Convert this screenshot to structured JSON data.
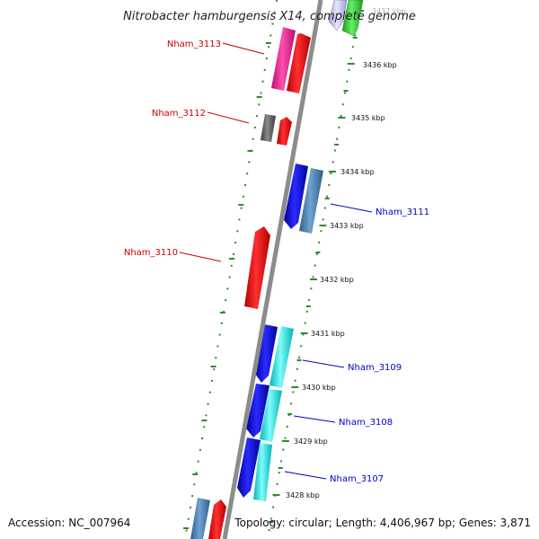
{
  "title": "Nitrobacter hamburgensis X14, complete genome",
  "footer": {
    "accession": "Accession: NC_007964",
    "summary": "Topology: circular; Length: 4,406,967 bp; Genes: 3,871"
  },
  "ticks": [
    {
      "label": "3437 kbp",
      "faded": true
    },
    {
      "label": "3436 kbp"
    },
    {
      "label": "3435 kbp"
    },
    {
      "label": "3434 kbp"
    },
    {
      "label": "3433 kbp"
    },
    {
      "label": "3432 kbp"
    },
    {
      "label": "3431 kbp"
    },
    {
      "label": "3430 kbp"
    },
    {
      "label": "3429 kbp"
    },
    {
      "label": "3428 kbp"
    }
  ],
  "genes": [
    {
      "id": "Nham_3113",
      "label": "Nham_3113",
      "strand": "reverse",
      "color": "#cc0000"
    },
    {
      "id": "Nham_3112",
      "label": "Nham_3112",
      "strand": "reverse",
      "color": "#cc0000"
    },
    {
      "id": "Nham_3111",
      "label": "Nham_3111",
      "strand": "forward",
      "color": "#0000cc"
    },
    {
      "id": "Nham_3110",
      "label": "Nham_3110",
      "strand": "reverse",
      "color": "#cc0000"
    },
    {
      "id": "Nham_3109",
      "label": "Nham_3109",
      "strand": "forward",
      "color": "#0000cc"
    },
    {
      "id": "Nham_3108",
      "label": "Nham_3108",
      "strand": "forward",
      "color": "#0000cc"
    },
    {
      "id": "Nham_3107",
      "label": "Nham_3107",
      "strand": "forward",
      "color": "#0000cc"
    }
  ],
  "colors": {
    "backbone": "#8c8c8c",
    "dotted_border": "#2e8b2e",
    "forward_gene": "#0000ff",
    "reverse_gene": "#ff0000",
    "cog_steelblue": "#4682b4",
    "cog_cyan": "#00e5e5",
    "cog_magenta": "#ee1493",
    "cog_gray": "#666666",
    "cog_green": "#33cc33"
  }
}
